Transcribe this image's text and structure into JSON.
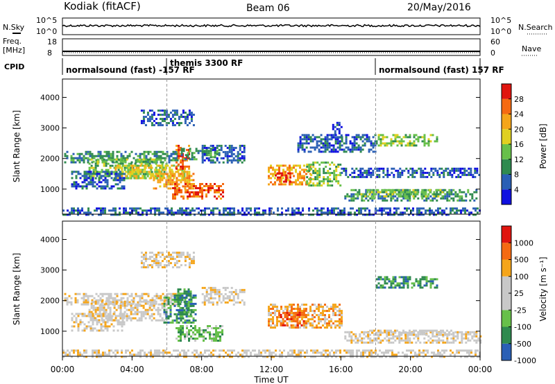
{
  "header": {
    "station": "Kodiak (fitACF)",
    "beam": "Beam 06",
    "date": "20/May/2016"
  },
  "strip_nsky": {
    "left_label": "N.Sky",
    "right_label": "N.Search",
    "left_ticks": [
      "10^5",
      "10^0"
    ],
    "right_ticks": [
      "10^5",
      "10^0"
    ]
  },
  "strip_freq": {
    "left_label_line1": "Freq.",
    "left_label_line2": "[MHz]",
    "right_label": "Nave",
    "left_ticks": [
      "18",
      "8"
    ],
    "right_ticks": [
      "60",
      "0"
    ]
  },
  "cpid": {
    "label": "CPID",
    "segments": [
      {
        "text": "normalsound (fast) -157 RF",
        "start_hour": 0
      },
      {
        "text": "themis 3300 RF",
        "start_hour": 6
      },
      {
        "text": "normalsound (fast) 157 RF",
        "start_hour": 18
      }
    ]
  },
  "colors": {
    "power": [
      "#1010e0",
      "#2a5fb5",
      "#2f8a4f",
      "#67c04a",
      "#e0d020",
      "#f5a51a",
      "#f56a12",
      "#e0150f"
    ],
    "velocity": [
      "#e0150f",
      "#f56a12",
      "#f5a51a",
      "#c8c8c8",
      "#c8c8c8",
      "#67c04a",
      "#2f8a4f",
      "#2a5fb5"
    ]
  },
  "chart_data": [
    {
      "type": "heatmap",
      "name": "power",
      "ylabel": "Slant Range [km]",
      "ylim": [
        180,
        4600
      ],
      "xlim": [
        0,
        24
      ],
      "yticks": [
        "1000",
        "2000",
        "3000",
        "4000"
      ],
      "colorbar_label": "Power [dB]",
      "colorbar_ticks": [
        "4",
        "8",
        "12",
        "16",
        "20",
        "24",
        "28"
      ],
      "colorbar_range": [
        0,
        32
      ],
      "regions": [
        {
          "t0": 0.1,
          "t1": 6.6,
          "r0": 1850,
          "r1": 2250,
          "level": 2
        },
        {
          "t0": 1.5,
          "t1": 6.0,
          "r0": 1350,
          "r1": 2000,
          "level": 3
        },
        {
          "t0": 3.0,
          "t1": 7.0,
          "r0": 1350,
          "r1": 1800,
          "level": 4
        },
        {
          "t0": 5.2,
          "t1": 7.5,
          "r0": 1000,
          "r1": 1600,
          "level": 5
        },
        {
          "t0": 6.3,
          "t1": 9.2,
          "r0": 700,
          "r1": 1200,
          "level": 6
        },
        {
          "t0": 6.5,
          "t1": 7.3,
          "r0": 1700,
          "r1": 2450,
          "level": 6
        },
        {
          "t0": 6.8,
          "t1": 9.0,
          "r0": 1950,
          "r1": 2350,
          "level": 2
        },
        {
          "t0": 8.0,
          "t1": 10.5,
          "r0": 1900,
          "r1": 2450,
          "level": 1
        },
        {
          "t0": 0.5,
          "t1": 3.5,
          "r0": 1000,
          "r1": 1600,
          "level": 1
        },
        {
          "t0": 0.0,
          "t1": 24.0,
          "r0": 180,
          "r1": 400,
          "level": 1
        },
        {
          "t0": 11.8,
          "t1": 14.2,
          "r0": 1150,
          "r1": 1800,
          "level": 5
        },
        {
          "t0": 12.2,
          "t1": 13.2,
          "r0": 1250,
          "r1": 1550,
          "level": 7
        },
        {
          "t0": 14.0,
          "t1": 16.0,
          "r0": 1150,
          "r1": 1900,
          "level": 3
        },
        {
          "t0": 13.5,
          "t1": 18.0,
          "r0": 2200,
          "r1": 2800,
          "level": 1
        },
        {
          "t0": 16.2,
          "t1": 23.8,
          "r0": 650,
          "r1": 1000,
          "level": 2
        },
        {
          "t0": 17.0,
          "t1": 22.0,
          "r0": 750,
          "r1": 1000,
          "level": 3
        },
        {
          "t0": 16.0,
          "t1": 24.0,
          "r0": 1400,
          "r1": 1700,
          "level": 1
        },
        {
          "t0": 18.0,
          "t1": 21.5,
          "r0": 2400,
          "r1": 2800,
          "level": 3
        },
        {
          "t0": 4.5,
          "t1": 7.5,
          "r0": 3100,
          "r1": 3600,
          "level": 1
        },
        {
          "t0": 15.5,
          "t1": 16.0,
          "r0": 2700,
          "r1": 3200,
          "level": 1
        }
      ]
    },
    {
      "type": "heatmap",
      "name": "velocity",
      "ylabel": "Slant Range [km]",
      "ylim": [
        180,
        4600
      ],
      "xlim": [
        0,
        24
      ],
      "yticks": [
        "1000",
        "2000",
        "3000",
        "4000"
      ],
      "colorbar_label": "Velocity [m s⁻¹]",
      "colorbar_ticks": [
        "1000",
        "500",
        "100",
        "25",
        "-25",
        "-100",
        "-500",
        "-1000"
      ],
      "colorbar_range": [
        -1000,
        1000
      ],
      "regions": [
        {
          "t0": 0.1,
          "t1": 6.6,
          "r0": 1850,
          "r1": 2250,
          "level": 3
        },
        {
          "t0": 1.5,
          "t1": 6.0,
          "r0": 1350,
          "r1": 2000,
          "level": 3
        },
        {
          "t0": 0.5,
          "t1": 3.5,
          "r0": 1000,
          "r1": 1600,
          "level": 3
        },
        {
          "t0": 5.8,
          "t1": 7.6,
          "r0": 1300,
          "r1": 2200,
          "level": 6
        },
        {
          "t0": 6.5,
          "t1": 9.2,
          "r0": 700,
          "r1": 1200,
          "level": 5
        },
        {
          "t0": 6.6,
          "t1": 7.4,
          "r0": 1500,
          "r1": 2400,
          "level": 6
        },
        {
          "t0": 8.0,
          "t1": 10.5,
          "r0": 1900,
          "r1": 2450,
          "level": 3
        },
        {
          "t0": 11.8,
          "t1": 16.0,
          "r0": 1100,
          "r1": 1900,
          "level": 2
        },
        {
          "t0": 12.5,
          "t1": 14.0,
          "r0": 1200,
          "r1": 1700,
          "level": 1
        },
        {
          "t0": 16.2,
          "t1": 24.0,
          "r0": 650,
          "r1": 1000,
          "level": 3
        },
        {
          "t0": 17.5,
          "t1": 22.5,
          "r0": 850,
          "r1": 1050,
          "level": 3
        },
        {
          "t0": 18.0,
          "t1": 21.5,
          "r0": 2400,
          "r1": 2800,
          "level": 6
        },
        {
          "t0": 0.0,
          "t1": 24.0,
          "r0": 180,
          "r1": 400,
          "level": 3
        },
        {
          "t0": 4.5,
          "t1": 7.5,
          "r0": 3100,
          "r1": 3600,
          "level": 3
        }
      ]
    }
  ],
  "xaxis": {
    "label": "Time UT",
    "ticks": [
      "00:00",
      "04:00",
      "08:00",
      "12:00",
      "16:00",
      "20:00",
      "00:00"
    ],
    "tick_hours": [
      0,
      4,
      8,
      12,
      16,
      20,
      24
    ],
    "mode_change_hours": [
      6,
      18
    ]
  }
}
